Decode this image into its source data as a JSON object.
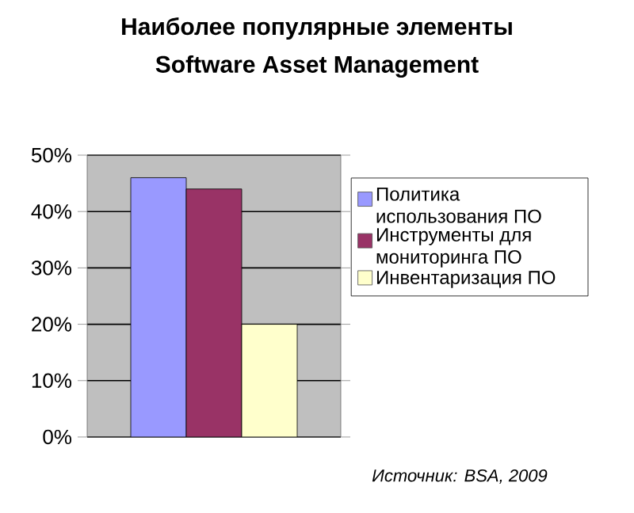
{
  "chart_data": {
    "type": "bar",
    "title": "Наиболее популярные элементы",
    "subtitle": "Software Asset Management",
    "categories": [
      null
    ],
    "series": [
      {
        "name": "Политика использования ПО",
        "color": "#9999ff",
        "values": [
          46
        ]
      },
      {
        "name": "Инструменты для мониторинга ПО",
        "color": "#993366",
        "values": [
          44
        ]
      },
      {
        "name": "Инвентаризация ПО",
        "color": "#ffffcc",
        "values": [
          20
        ]
      }
    ],
    "ylim": [
      0,
      50
    ],
    "yticks": [
      {
        "value": 0,
        "label": "0%"
      },
      {
        "value": 10,
        "label": "10%"
      },
      {
        "value": 20,
        "label": "20%"
      },
      {
        "value": 30,
        "label": "30%"
      },
      {
        "value": 40,
        "label": "40%"
      },
      {
        "value": 50,
        "label": "50%"
      }
    ],
    "grid": "y",
    "legend": "right",
    "annotations": [
      "Источник: BSA, 2009"
    ]
  }
}
